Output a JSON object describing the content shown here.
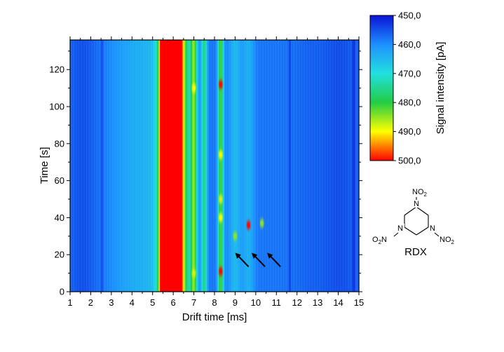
{
  "chart_data": {
    "type": "heatmap",
    "title": "",
    "xlabel": "Drift time [ms]",
    "ylabel": "Time [s]",
    "xlim": [
      1,
      15
    ],
    "ylim": [
      0,
      136
    ],
    "x_ticks": [
      1,
      2,
      3,
      4,
      5,
      6,
      7,
      8,
      9,
      10,
      11,
      12,
      13,
      14,
      15
    ],
    "y_ticks": [
      0,
      20,
      40,
      60,
      80,
      100,
      120
    ],
    "colorbar": {
      "label": "Signal intensity [pA]",
      "min": 450,
      "max": 500,
      "reversed": true,
      "tick_values": [
        450,
        460,
        470,
        480,
        490,
        500
      ],
      "tick_labels": [
        "450,0",
        "460,0",
        "470,0",
        "480,0",
        "490,0",
        "500,0"
      ],
      "colors": [
        "#0a14d6",
        "#1e90ff",
        "#22e0e0",
        "#22cc44",
        "#ffff00",
        "#ff0000"
      ]
    },
    "baseline_pA": 458,
    "bands": [
      {
        "drift_ms": 1.6,
        "half_width_ms": 0.45,
        "intensity_pA": -3
      },
      {
        "drift_ms": 2.55,
        "half_width_ms": 0.04,
        "intensity_pA": -4
      },
      {
        "drift_ms": 3.4,
        "half_width_ms": 0.5,
        "intensity_pA": 1.5
      },
      {
        "drift_ms": 4.6,
        "half_width_ms": 0.8,
        "intensity_pA": 6
      },
      {
        "drift_ms": 5.5,
        "half_width_ms": 0.12,
        "intensity_pA": 32
      },
      {
        "drift_ms": 6.0,
        "half_width_ms": 0.4,
        "intensity_pA": 70
      },
      {
        "drift_ms": 7.0,
        "half_width_ms": 0.12,
        "intensity_pA": 24
      },
      {
        "drift_ms": 7.5,
        "half_width_ms": 0.1,
        "intensity_pA": 18
      },
      {
        "drift_ms": 8.3,
        "half_width_ms": 0.1,
        "intensity_pA": 24
      },
      {
        "drift_ms": 9.0,
        "half_width_ms": 0.22,
        "intensity_pA": 7
      },
      {
        "drift_ms": 9.65,
        "half_width_ms": 0.2,
        "intensity_pA": 6
      },
      {
        "drift_ms": 11.65,
        "half_width_ms": 0.04,
        "intensity_pA": -4
      },
      {
        "drift_ms": 12.7,
        "half_width_ms": 0.6,
        "intensity_pA": -1.5
      },
      {
        "drift_ms": 14.1,
        "half_width_ms": 0.6,
        "intensity_pA": -3
      },
      {
        "drift_ms": 14.75,
        "half_width_ms": 0.05,
        "intensity_pA": -4
      }
    ],
    "spots": [
      {
        "drift_ms": 8.3,
        "time_s": 112,
        "intensity_pA": 500
      },
      {
        "drift_ms": 8.3,
        "time_s": 11,
        "intensity_pA": 500
      },
      {
        "drift_ms": 7.0,
        "time_s": 110,
        "intensity_pA": 490
      },
      {
        "drift_ms": 7.0,
        "time_s": 10,
        "intensity_pA": 488
      },
      {
        "drift_ms": 8.3,
        "time_s": 74,
        "intensity_pA": 490
      },
      {
        "drift_ms": 8.3,
        "time_s": 40,
        "intensity_pA": 490
      },
      {
        "drift_ms": 8.3,
        "time_s": 50,
        "intensity_pA": 488
      },
      {
        "drift_ms": 9.0,
        "time_s": 30,
        "intensity_pA": 485
      },
      {
        "drift_ms": 9.65,
        "time_s": 36,
        "intensity_pA": 500
      },
      {
        "drift_ms": 10.3,
        "time_s": 37,
        "intensity_pA": 485
      }
    ],
    "annotations": [
      {
        "type": "arrow",
        "from": [
          9.65,
          13.5
        ],
        "to": [
          9.05,
          20.5
        ]
      },
      {
        "type": "arrow",
        "from": [
          10.45,
          13.5
        ],
        "to": [
          9.85,
          20.5
        ]
      },
      {
        "type": "arrow",
        "from": [
          11.2,
          13.5
        ],
        "to": [
          10.6,
          20.5
        ]
      }
    ],
    "inset": {
      "name": "RDX",
      "substituent_top": "NO",
      "substituent_top_sub": "2",
      "substituent_left_prefix": "O",
      "substituent_left_sub": "2",
      "substituent_left_suffix": "N",
      "substituent_right": "NO",
      "substituent_right_sub": "2",
      "atom_label": "N"
    }
  }
}
